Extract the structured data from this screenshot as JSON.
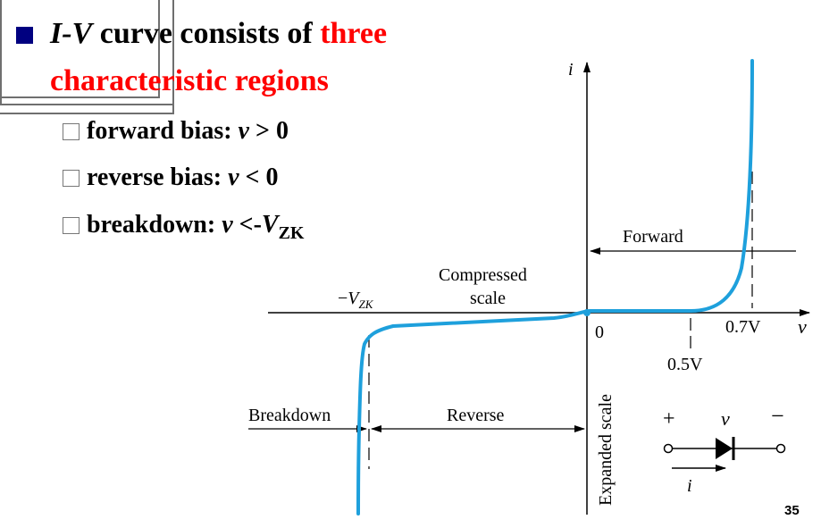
{
  "slide": {
    "title_italic": "I-V",
    "title_mid": " curve consists of ",
    "title_red1": "three",
    "title_red2": "characteristic regions",
    "bullets": [
      {
        "label": "forward bias: ",
        "var": "v",
        "rel": " > 0"
      },
      {
        "label": "reverse bias: ",
        "var": "v",
        "rel": " < 0"
      },
      {
        "label": "breakdown: ",
        "var": "v",
        "rel": " <-",
        "vz": "V",
        "vz_sub": "ZK"
      }
    ],
    "page_number": "35"
  },
  "diagram": {
    "axis_i": "i",
    "axis_v": "v",
    "origin": "0",
    "forward": "Forward",
    "compressed1": "Compressed",
    "compressed2": "scale",
    "vzk_minus": "−",
    "vzk_v": "V",
    "vzk_sub": "ZK",
    "v07": "0.7V",
    "v05": "0.5V",
    "breakdown": "Breakdown",
    "reverse": "Reverse",
    "expanded": "Expanded scale",
    "plus": "+",
    "minus": "−",
    "sym_v": "v",
    "sym_i": "i",
    "curve_color": "#1ea0dc"
  }
}
